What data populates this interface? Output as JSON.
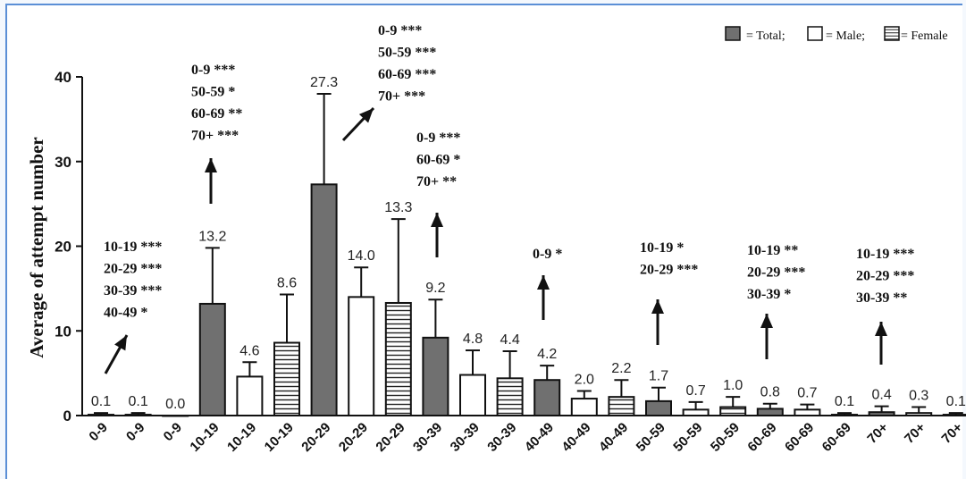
{
  "chart_data": {
    "type": "bar",
    "ylabel": "Average of attempt number",
    "ylim": [
      0,
      40
    ],
    "yticks": [
      0,
      10,
      20,
      30,
      40
    ],
    "legend": {
      "placement": "top-right",
      "items": [
        {
          "pattern": "filled",
          "text": "= Total;"
        },
        {
          "pattern": "open",
          "text": "= Male;"
        },
        {
          "pattern": "striped",
          "text": "= Female"
        }
      ]
    },
    "categories": [
      "0-9",
      "0-9",
      "0-9",
      "10-19",
      "10-19",
      "10-19",
      "20-29",
      "20-29",
      "20-29",
      "30-39",
      "30-39",
      "30-39",
      "40-49",
      "40-49",
      "40-49",
      "50-59",
      "50-59",
      "50-59",
      "60-69",
      "60-69",
      "60-69",
      "70+",
      "70+",
      "70+"
    ],
    "patterns": [
      "filled",
      "open",
      "striped",
      "filled",
      "open",
      "striped",
      "filled",
      "open",
      "striped",
      "filled",
      "open",
      "striped",
      "filled",
      "open",
      "striped",
      "filled",
      "open",
      "striped",
      "filled",
      "open",
      "striped",
      "filled",
      "open",
      "striped"
    ],
    "values": [
      0.1,
      0.1,
      0.0,
      13.2,
      4.6,
      8.6,
      27.3,
      14.0,
      13.3,
      9.2,
      4.8,
      4.4,
      4.2,
      2.0,
      2.2,
      1.7,
      0.7,
      1.0,
      0.8,
      0.7,
      0.1,
      0.4,
      0.3,
      0.1
    ],
    "value_labels": [
      "0.1",
      "0.1",
      "0.0",
      "13.2",
      "4.6",
      "8.6",
      "27.3",
      "14.0",
      "13.3",
      "9.2",
      "4.8",
      "4.4",
      "4.2",
      "2.0",
      "2.2",
      "1.7",
      "0.7",
      "1.0",
      "0.8",
      "0.7",
      "0.1",
      "0.4",
      "0.3",
      "0.1"
    ],
    "error_upper": [
      0.3,
      0.3,
      0.0,
      19.8,
      6.3,
      14.3,
      38.0,
      17.5,
      23.2,
      13.7,
      7.7,
      7.6,
      5.9,
      2.9,
      4.2,
      3.3,
      1.6,
      2.2,
      1.4,
      1.3,
      0.3,
      1.1,
      1.0,
      0.3
    ],
    "colors": {
      "filled": "#707070",
      "open": "#ffffff",
      "striped_line": "#222222",
      "axis": "#111111"
    },
    "annotations": [
      {
        "group": "0-9",
        "lines": [
          "10-19 ***",
          "20-29 ***",
          "30-39 ***",
          "40-49 *"
        ]
      },
      {
        "group": "10-19",
        "lines": [
          "0-9 ***",
          "50-59 *",
          "60-69 **",
          "70+ ***"
        ]
      },
      {
        "group": "20-29",
        "lines": [
          "0-9 ***",
          "50-59 ***",
          "60-69 ***",
          "70+ ***"
        ]
      },
      {
        "group": "30-39",
        "lines": [
          "0-9 ***",
          "60-69 *",
          "70+ **"
        ]
      },
      {
        "group": "40-49",
        "lines": [
          "0-9 *"
        ]
      },
      {
        "group": "50-59",
        "lines": [
          "10-19 *",
          "20-29 ***"
        ]
      },
      {
        "group": "60-69",
        "lines": [
          "10-19 **",
          "20-29 ***",
          "30-39 *"
        ]
      },
      {
        "group": "70+",
        "lines": [
          "10-19 ***",
          "20-29 ***",
          "30-39 **"
        ]
      }
    ]
  }
}
